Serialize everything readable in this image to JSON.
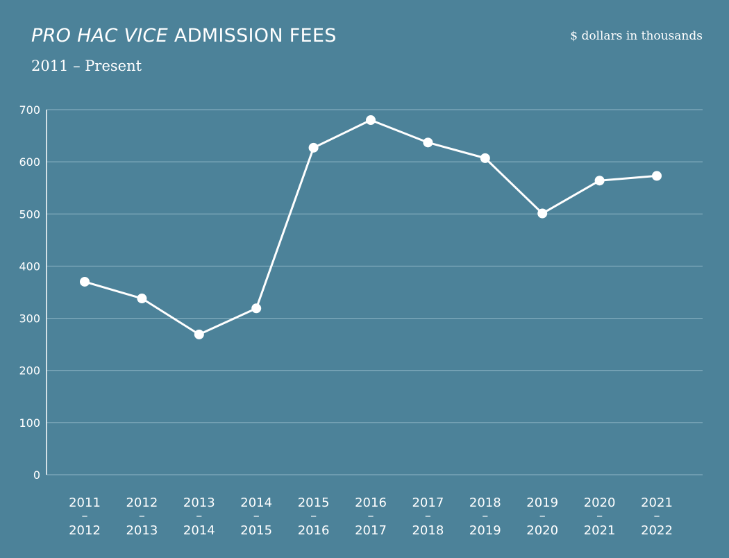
{
  "header": {
    "title_italic": "PRO HAC VICE",
    "title_rest": "ADMISSION FEES",
    "subtitle": "2011 – Present",
    "units": "$ dollars in thousands"
  },
  "colors": {
    "background": "#4c8299",
    "line": "#ffffff",
    "gridline": "#8fb6c6",
    "text": "#ffffff"
  },
  "chart_data": {
    "type": "line",
    "title": "PRO HAC VICE ADMISSION FEES",
    "subtitle": "2011 – Present",
    "ylabel": "$ dollars in thousands",
    "categories": [
      [
        "2011",
        "–",
        "2012"
      ],
      [
        "2012",
        "–",
        "2013"
      ],
      [
        "2013",
        "–",
        "2014"
      ],
      [
        "2014",
        "–",
        "2015"
      ],
      [
        "2015",
        "–",
        "2016"
      ],
      [
        "2016",
        "–",
        "2017"
      ],
      [
        "2017",
        "–",
        "2018"
      ],
      [
        "2018",
        "–",
        "2019"
      ],
      [
        "2019",
        "–",
        "2020"
      ],
      [
        "2020",
        "–",
        "2021"
      ],
      [
        "2021",
        "–",
        "2022"
      ]
    ],
    "values": [
      370,
      338,
      269,
      319,
      627,
      680,
      637,
      607,
      501,
      564,
      573
    ],
    "ylim": [
      0,
      700
    ],
    "yticks": [
      0,
      100,
      200,
      300,
      400,
      500,
      600,
      700
    ],
    "grid": true,
    "legend": "none"
  }
}
